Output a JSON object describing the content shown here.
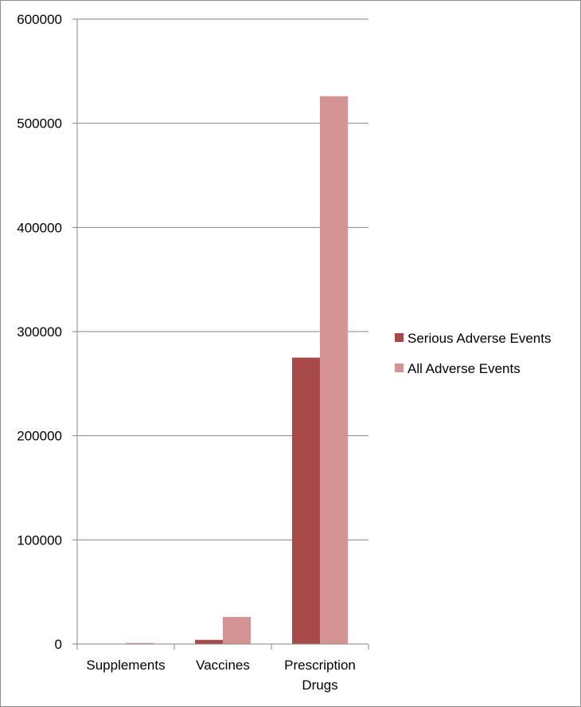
{
  "chart_data": {
    "type": "bar",
    "title": "",
    "xlabel": "",
    "ylabel": "",
    "categories": [
      [
        "Supplements"
      ],
      [
        "Vaccines"
      ],
      [
        "Prescription",
        "Drugs"
      ]
    ],
    "series": [
      {
        "name": "Serious Adverse Events",
        "color": "#a94848",
        "values": [
          0,
          4000,
          275000
        ]
      },
      {
        "name": "All Adverse Events",
        "color": "#d49494",
        "values": [
          1000,
          26000,
          526000
        ]
      }
    ],
    "ylim": [
      0,
      600000
    ],
    "yticks": [
      0,
      100000,
      200000,
      300000,
      400000,
      500000,
      600000
    ],
    "ytick_labels": [
      "0",
      "100000",
      "200000",
      "300000",
      "400000",
      "500000",
      "600000"
    ],
    "grid": true,
    "gridline_color": "#868686",
    "legend_position": "right"
  }
}
